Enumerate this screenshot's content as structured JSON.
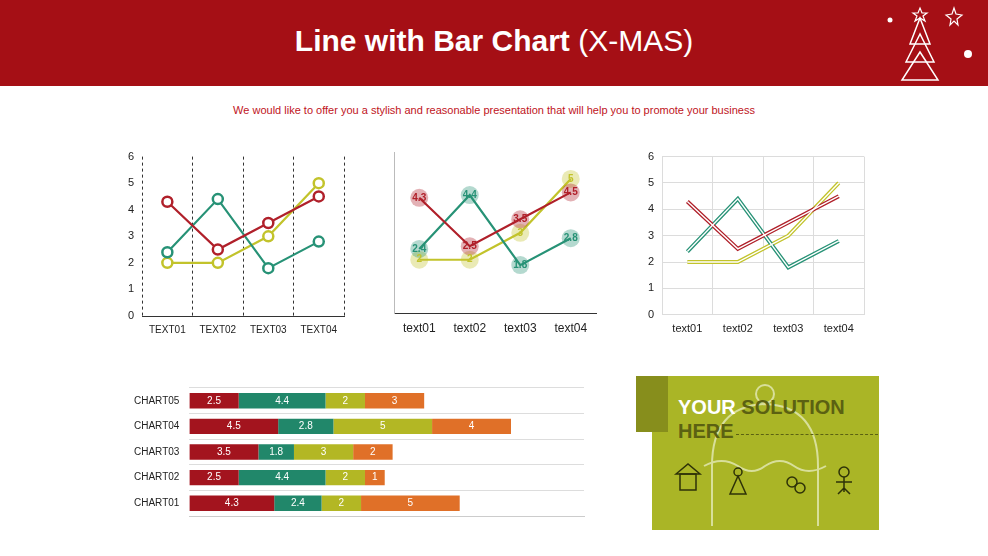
{
  "header": {
    "title": "Line with Bar Chart (X-MAS)",
    "subtitle": "We would like to offer you a stylish and reasonable presentation that will help you to promote your business"
  },
  "chart_data": [
    {
      "type": "line",
      "categories": [
        "TEXT01",
        "TEXT02",
        "TEXT03",
        "TEXT04"
      ],
      "series": [
        {
          "color": "#b0202a",
          "values": [
            4.3,
            2.5,
            3.5,
            4.5
          ]
        },
        {
          "color": "#279276",
          "values": [
            2.4,
            4.4,
            1.8,
            2.8
          ]
        },
        {
          "color": "#c2c32b",
          "values": [
            2,
            2,
            3,
            5
          ]
        }
      ],
      "ylim": [
        0,
        6
      ],
      "yticks": [
        0,
        1,
        2,
        3,
        4,
        5,
        6
      ],
      "grid": "x",
      "marker": "hollow_circle",
      "line_style": "solid"
    },
    {
      "type": "line",
      "categories": [
        "text01",
        "text02",
        "text03",
        "text04"
      ],
      "series": [
        {
          "color": "#b0202a",
          "values": [
            4.3,
            2.5,
            3.5,
            4.5
          ]
        },
        {
          "color": "#279276",
          "values": [
            2.4,
            4.4,
            1.8,
            2.8
          ]
        },
        {
          "color": "#c2c32b",
          "values": [
            2,
            2,
            3,
            5
          ]
        }
      ],
      "ylim": [
        0,
        6
      ],
      "grid": false,
      "marker": "circle",
      "line_style": "solid",
      "data_labels": true,
      "tick_labels": "x"
    },
    {
      "type": "line",
      "categories": [
        "text01",
        "text02",
        "text03",
        "text04"
      ],
      "series": [
        {
          "color": "#b0202a",
          "values": [
            4.3,
            2.5,
            3.5,
            4.5
          ]
        },
        {
          "color": "#279276",
          "values": [
            2.4,
            4.4,
            1.8,
            2.8
          ]
        },
        {
          "color": "#c2c32b",
          "values": [
            2,
            2,
            3,
            5
          ]
        }
      ],
      "ylim": [
        0,
        6
      ],
      "yticks": [
        0,
        1,
        2,
        3,
        4,
        5,
        6
      ],
      "grid": true,
      "marker": "none",
      "line_style": "double"
    },
    {
      "type": "bar",
      "orientation": "horizontal",
      "stacked": true,
      "categories": [
        "CHART01",
        "CHART02",
        "CHART03",
        "CHART04",
        "CHART05"
      ],
      "series": [
        {
          "color": "#a3141e",
          "values": [
            4.3,
            2.5,
            3.5,
            4.5,
            2.5
          ]
        },
        {
          "color": "#21876a",
          "values": [
            2.4,
            4.4,
            1.8,
            2.8,
            4.4
          ]
        },
        {
          "color": "#b3b724",
          "values": [
            2,
            2,
            3,
            5,
            2
          ]
        },
        {
          "color": "#e07028",
          "values": [
            5,
            1,
            2,
            4,
            3
          ]
        }
      ],
      "xlim": [
        0,
        20
      ],
      "grid": "y",
      "data_labels": true,
      "tick_labels": "y"
    }
  ],
  "callout": "YOUR SOLUTION HERE"
}
